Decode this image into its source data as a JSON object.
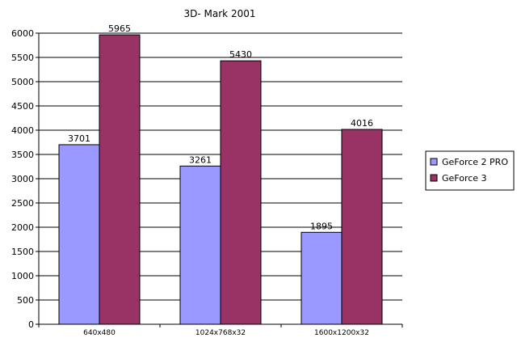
{
  "chart_data": {
    "type": "bar",
    "title": "3D- Mark 2001",
    "categories": [
      "640x480",
      "1024x768x32",
      "1600x1200x32"
    ],
    "series": [
      {
        "name": "GeForce 2 PRO",
        "values": [
          3701,
          3261,
          1895
        ],
        "color": "#9999ff"
      },
      {
        "name": "GeForce 3",
        "values": [
          5965,
          5430,
          4016
        ],
        "color": "#993366"
      }
    ],
    "ylim": [
      0,
      6000
    ],
    "yticks": [
      0,
      500,
      1000,
      1500,
      2000,
      2500,
      3000,
      3500,
      4000,
      4500,
      5000,
      5500,
      6000
    ],
    "grid": true,
    "legend": "right"
  }
}
